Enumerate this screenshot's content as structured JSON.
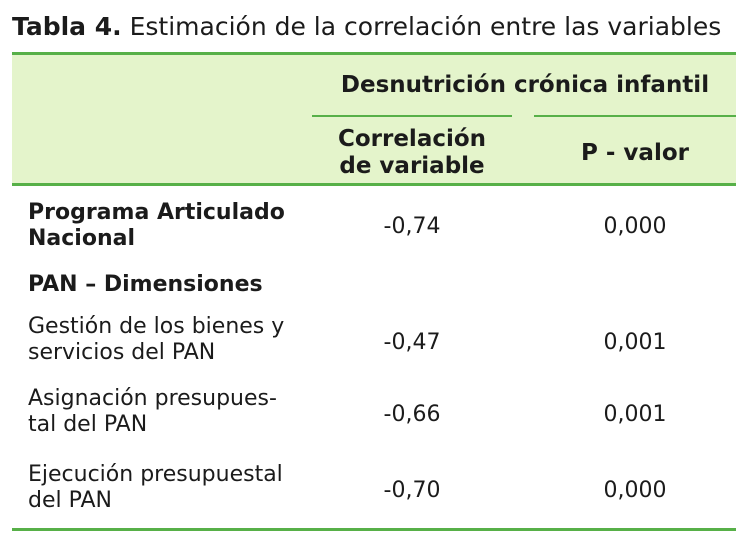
{
  "caption": {
    "number": "Tabla 4.",
    "text": "Estimación de la correlación entre las variables"
  },
  "header": {
    "group": "Desnutrición crónica infantil",
    "col_corr_line1": "Correlación",
    "col_corr_line2": "de variable",
    "col_pval": "P - valor"
  },
  "rows": [
    {
      "line1": "Programa Articulado",
      "line2": "Nacional",
      "corr": "-0,74",
      "pval": "0,000"
    },
    {
      "line1": "PAN – Dimensiones"
    },
    {
      "line1": "Gestión de los bienes y",
      "line2": "servicios del PAN",
      "corr": "-0,47",
      "pval": "0,001"
    },
    {
      "line1": "Asignación presupues-",
      "line2": "tal del PAN",
      "corr": "-0,66",
      "pval": "0,001"
    },
    {
      "line1": "Ejecución presupuestal",
      "line2": "del PAN",
      "corr": "-0,70",
      "pval": "0,000"
    }
  ],
  "colors": {
    "header_bg": "#e4f4cb",
    "rule": "#57b048"
  }
}
